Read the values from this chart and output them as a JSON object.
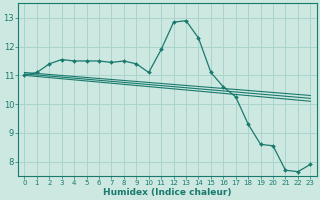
{
  "xlabel": "Humidex (Indice chaleur)",
  "bg_color": "#cce8e0",
  "grid_color": "#aad4cc",
  "line_color": "#1a7a6e",
  "xlim": [
    -0.5,
    23.5
  ],
  "ylim": [
    7.5,
    13.5
  ],
  "xticks": [
    0,
    1,
    2,
    3,
    4,
    5,
    6,
    7,
    8,
    9,
    10,
    11,
    12,
    13,
    14,
    15,
    16,
    17,
    18,
    19,
    20,
    21,
    22,
    23
  ],
  "yticks": [
    8,
    9,
    10,
    11,
    12,
    13
  ],
  "main_x": [
    0,
    1,
    2,
    3,
    4,
    5,
    6,
    7,
    8,
    9,
    10,
    11,
    12,
    13,
    14,
    15,
    16,
    17,
    18,
    19,
    20,
    21,
    22,
    23
  ],
  "main_y": [
    11.0,
    11.1,
    11.4,
    11.55,
    11.5,
    11.5,
    11.5,
    11.45,
    11.5,
    11.4,
    11.1,
    11.9,
    12.85,
    12.9,
    12.3,
    11.1,
    10.6,
    10.25,
    9.3,
    8.6,
    8.55,
    7.7,
    7.65,
    7.9
  ],
  "line2_x": [
    0,
    23
  ],
  "line2_y": [
    11.0,
    10.1
  ],
  "line3_x": [
    0,
    23
  ],
  "line3_y": [
    11.05,
    10.2
  ],
  "line4_x": [
    0,
    23
  ],
  "line4_y": [
    11.1,
    10.3
  ]
}
